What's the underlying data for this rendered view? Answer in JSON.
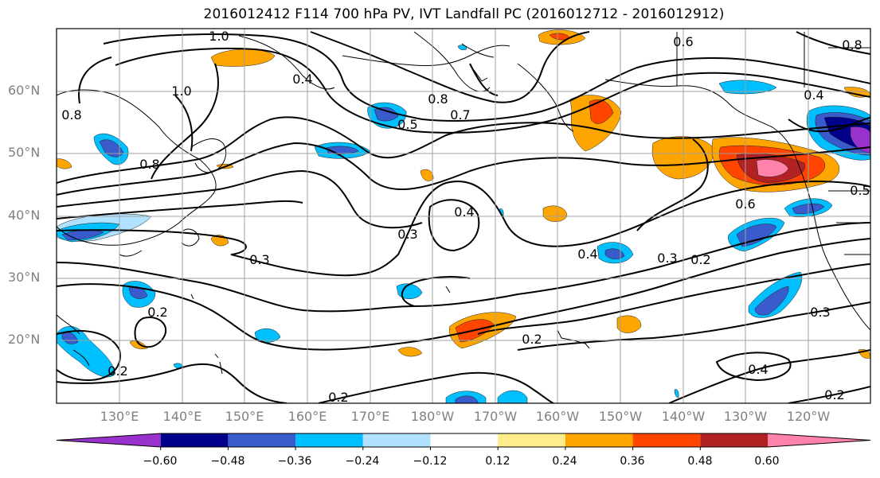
{
  "title": "2016012412 F114 700 hPa PV, IVT Landfall PC (2016012712 - 2016012912)",
  "latitude_labels": [
    "60°N",
    "50°N",
    "40°N",
    "30°N",
    "20°N"
  ],
  "longitude_labels": [
    "130°E",
    "140°E",
    "150°E",
    "160°E",
    "170°E",
    "180°W",
    "170°W",
    "160°W",
    "150°W",
    "140°W",
    "130°W",
    "120°W"
  ],
  "colorbar": {
    "tick_labels": [
      "−0.60",
      "−0.48",
      "−0.36",
      "−0.24",
      "−0.12",
      "0.12",
      "0.24",
      "0.36",
      "0.48",
      "0.60"
    ],
    "colors": [
      "#9932CC",
      "#00008B",
      "#3A5BCB",
      "#00BFFF",
      "#B0E2FF",
      "#FFFFFF",
      "#FFEC8B",
      "#FFA500",
      "#FF4500",
      "#B22222",
      "#FF82AB"
    ]
  },
  "contour_labels": [
    "1.0",
    "0.4",
    "0.8",
    "0.6",
    "0.5",
    "0.7",
    "0.8",
    "0.4",
    "0.8",
    "0.6",
    "0.3",
    "0.4",
    "0.3",
    "0.4",
    "0.3",
    "0.2",
    "0.2",
    "0.2",
    "0.2",
    "0.4",
    "0.3",
    "0.2",
    "0.2",
    "0.5",
    "0.8",
    "1.0"
  ],
  "colors": {
    "contour": "#000000",
    "grid": "#a0a0a0",
    "axis_label": "#808080"
  }
}
